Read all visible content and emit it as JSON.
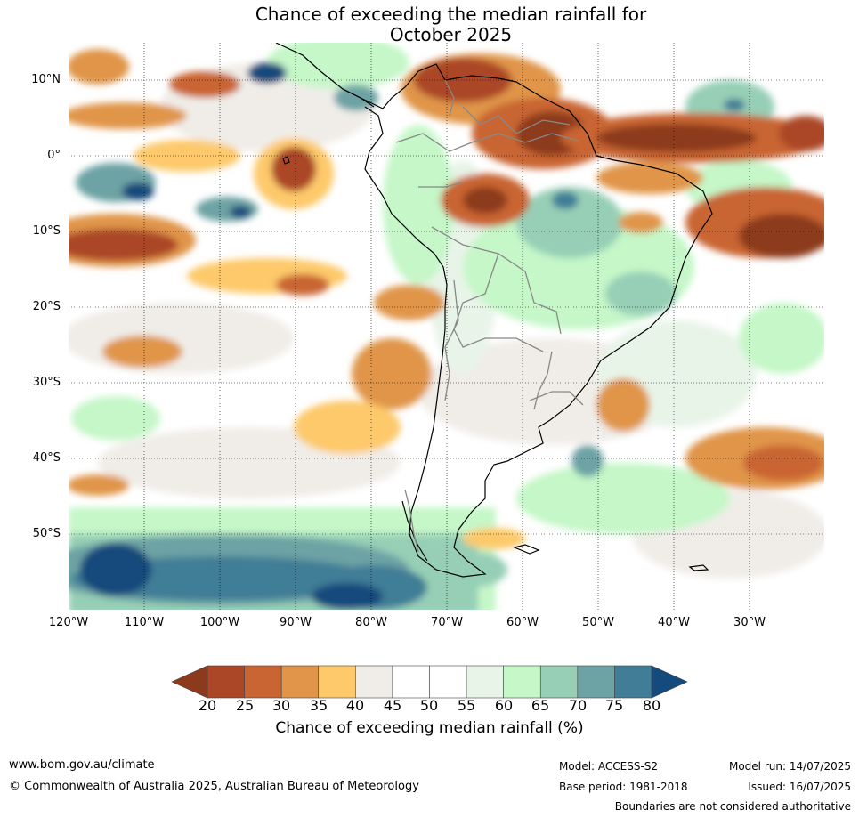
{
  "title_line1": "Chance of exceeding the median rainfall for",
  "title_line2": "October 2025",
  "map": {
    "lat_ticks": [
      "10°N",
      "0°",
      "10°S",
      "20°S",
      "30°S",
      "40°S",
      "50°S"
    ],
    "lon_ticks": [
      "120°W",
      "110°W",
      "100°W",
      "90°W",
      "80°W",
      "70°W",
      "60°W",
      "50°W",
      "40°W",
      "30°W"
    ],
    "lat_range": [
      -60,
      15
    ],
    "lon_range": [
      -120,
      -20
    ]
  },
  "colorbar": {
    "title": "Chance of exceeding median rainfall (%)",
    "labels": [
      "20",
      "25",
      "30",
      "35",
      "40",
      "45",
      "50",
      "55",
      "60",
      "65",
      "70",
      "75",
      "80"
    ],
    "colors": [
      "#8c3a1c",
      "#ab4727",
      "#c96532",
      "#e0954a",
      "#fdc96a",
      "#f0ede8",
      "#ffffff",
      "#ffffff",
      "#e8f4e8",
      "#c5f7c8",
      "#96cfb6",
      "#6da3a4",
      "#417d96",
      "#154a7c"
    ]
  },
  "footer": {
    "website": "www.bom.gov.au/climate",
    "copyright": "© Commonwealth of Australia 2025, Australian Bureau of Meteorology",
    "model": "Model: ACCESS-S2",
    "base_period": "Base period: 1981-2018",
    "model_run": "Model run: 14/07/2025",
    "issued": "Issued: 16/07/2025",
    "disclaimer": "Boundaries are not considered authoritative"
  }
}
